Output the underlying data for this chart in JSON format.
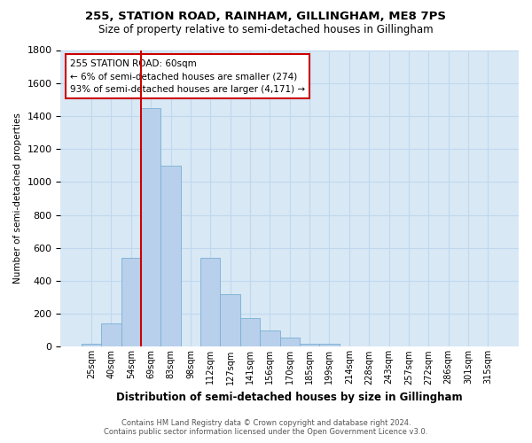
{
  "title1": "255, STATION ROAD, RAINHAM, GILLINGHAM, ME8 7PS",
  "title2": "Size of property relative to semi-detached houses in Gillingham",
  "xlabel": "Distribution of semi-detached houses by size in Gillingham",
  "ylabel": "Number of semi-detached properties",
  "categories": [
    "25sqm",
    "40sqm",
    "54sqm",
    "69sqm",
    "83sqm",
    "98sqm",
    "112sqm",
    "127sqm",
    "141sqm",
    "156sqm",
    "170sqm",
    "185sqm",
    "199sqm",
    "214sqm",
    "228sqm",
    "243sqm",
    "257sqm",
    "272sqm",
    "286sqm",
    "301sqm",
    "315sqm"
  ],
  "values": [
    20,
    140,
    540,
    1450,
    1100,
    0,
    540,
    320,
    175,
    100,
    55,
    20,
    20,
    0,
    0,
    0,
    0,
    0,
    0,
    0,
    0
  ],
  "bar_color": "#b8d0eb",
  "bar_edge_color": "#7aafd4",
  "highlight_bar_index": 2,
  "highlight_color": "#cc0000",
  "annotation_title": "255 STATION ROAD: 60sqm",
  "annotation_line1": "← 6% of semi-detached houses are smaller (274)",
  "annotation_line2": "93% of semi-detached houses are larger (4,171) →",
  "grid_color": "#c0d8ee",
  "bg_color": "#d8e8f5",
  "footer1": "Contains HM Land Registry data © Crown copyright and database right 2024.",
  "footer2": "Contains public sector information licensed under the Open Government Licence v3.0.",
  "ylim": [
    0,
    1800
  ],
  "yticks": [
    0,
    200,
    400,
    600,
    800,
    1000,
    1200,
    1400,
    1600,
    1800
  ]
}
